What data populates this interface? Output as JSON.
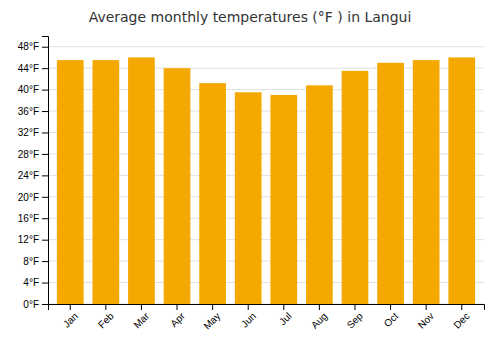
{
  "chart_data": {
    "type": "bar",
    "title": "Average monthly temperatures (°F ) in Langui",
    "categories": [
      "Jan",
      "Feb",
      "Mar",
      "Apr",
      "May",
      "Jun",
      "Jul",
      "Aug",
      "Sep",
      "Oct",
      "Nov",
      "Dec"
    ],
    "values": [
      45.5,
      45.5,
      46.0,
      44.0,
      41.2,
      39.5,
      39.0,
      40.8,
      43.5,
      45.0,
      45.5,
      46.0
    ],
    "color": "#F5A800",
    "ylim": [
      0,
      50
    ],
    "yticks": [
      {
        "value": 0,
        "label": "0°F"
      },
      {
        "value": 4,
        "label": "4°F"
      },
      {
        "value": 8,
        "label": "8°F"
      },
      {
        "value": 12,
        "label": "12°F"
      },
      {
        "value": 16,
        "label": "16°F"
      },
      {
        "value": 20,
        "label": "20°F"
      },
      {
        "value": 24,
        "label": "24°F"
      },
      {
        "value": 28,
        "label": "28°F"
      },
      {
        "value": 32,
        "label": "32°F"
      },
      {
        "value": 36,
        "label": "36°F"
      },
      {
        "value": 40,
        "label": "40°F"
      },
      {
        "value": 44,
        "label": "44°F"
      },
      {
        "value": 48,
        "label": "48°F"
      }
    ],
    "grid": true
  }
}
